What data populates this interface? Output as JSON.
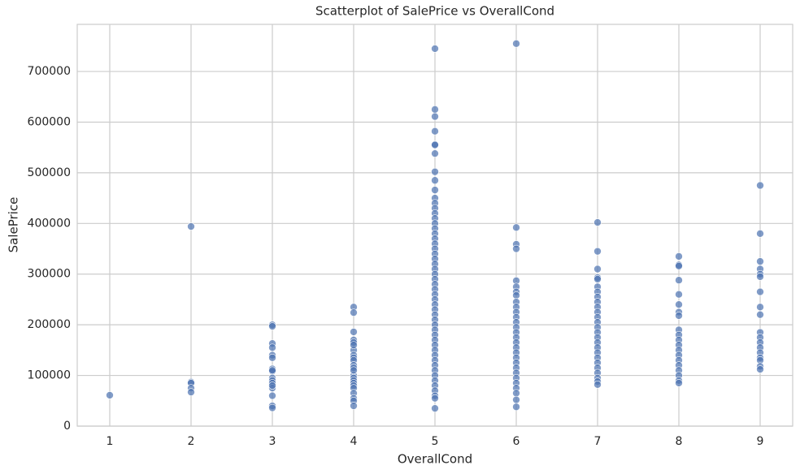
{
  "chart_data": {
    "type": "scatter",
    "title": "Scatterplot of SalePrice vs OverallCond",
    "x_label": "OverallCond",
    "y_label": "SalePrice",
    "xlim": [
      0.6,
      9.4
    ],
    "ylim": [
      0,
      793000
    ],
    "xticks": [
      1,
      2,
      3,
      4,
      5,
      6,
      7,
      8,
      9
    ],
    "yticks": [
      0,
      100000,
      200000,
      300000,
      400000,
      500000,
      600000,
      700000
    ],
    "grid": true,
    "color": "#4c72b0",
    "x": [
      1,
      2,
      2,
      2,
      2,
      2,
      3,
      3,
      3,
      3,
      3,
      3,
      3,
      3,
      3,
      3,
      3,
      3,
      3,
      3,
      3,
      3,
      3,
      4,
      4,
      4,
      4,
      4,
      4,
      4,
      4,
      4,
      4,
      4,
      4,
      4,
      4,
      4,
      4,
      4,
      4,
      4,
      4,
      4,
      4,
      4,
      5,
      5,
      5,
      5,
      5,
      5,
      5,
      5,
      5,
      5,
      5,
      5,
      5,
      5,
      5,
      5,
      5,
      5,
      5,
      5,
      5,
      5,
      5,
      5,
      5,
      5,
      5,
      5,
      5,
      5,
      5,
      5,
      5,
      5,
      5,
      5,
      5,
      5,
      5,
      5,
      5,
      5,
      5,
      5,
      5,
      5,
      5,
      5,
      5,
      5,
      5,
      5,
      6,
      6,
      6,
      6,
      6,
      6,
      6,
      6,
      6,
      6,
      6,
      6,
      6,
      6,
      6,
      6,
      6,
      6,
      6,
      6,
      6,
      6,
      6,
      6,
      6,
      6,
      6,
      6,
      6,
      7,
      7,
      7,
      7,
      7,
      7,
      7,
      7,
      7,
      7,
      7,
      7,
      7,
      7,
      7,
      7,
      7,
      7,
      7,
      7,
      7,
      7,
      7,
      7,
      7,
      7,
      8,
      8,
      8,
      8,
      8,
      8,
      8,
      8,
      8,
      8,
      8,
      8,
      8,
      8,
      8,
      8,
      8,
      8,
      8,
      8,
      9,
      9,
      9,
      9,
      9,
      9,
      9,
      9,
      9,
      9,
      9,
      9,
      9,
      9,
      9,
      9,
      9,
      9
    ],
    "y": [
      61000,
      394000,
      87000,
      85000,
      75000,
      67000,
      200000,
      197000,
      163000,
      155000,
      140000,
      135000,
      113000,
      108000,
      95000,
      90000,
      85000,
      75000,
      60000,
      40000,
      36000,
      110000,
      80000,
      235000,
      224000,
      186000,
      170000,
      165000,
      150000,
      140000,
      135000,
      130000,
      120000,
      115000,
      100000,
      95000,
      90000,
      85000,
      80000,
      75000,
      65000,
      55000,
      50000,
      40000,
      160000,
      110000,
      745000,
      625000,
      611000,
      582000,
      556000,
      555000,
      538000,
      502000,
      485000,
      466000,
      450000,
      440000,
      430000,
      420000,
      410000,
      400000,
      390000,
      380000,
      370000,
      360000,
      350000,
      340000,
      330000,
      320000,
      310000,
      300000,
      290000,
      280000,
      270000,
      260000,
      250000,
      240000,
      230000,
      220000,
      210000,
      200000,
      190000,
      180000,
      170000,
      160000,
      150000,
      140000,
      130000,
      120000,
      110000,
      100000,
      90000,
      80000,
      70000,
      60000,
      55000,
      35000,
      755000,
      392000,
      359000,
      350000,
      287000,
      275000,
      265000,
      258000,
      245000,
      235000,
      225000,
      215000,
      205000,
      195000,
      185000,
      175000,
      165000,
      155000,
      145000,
      135000,
      125000,
      115000,
      105000,
      95000,
      85000,
      75000,
      65000,
      52000,
      38000,
      402000,
      345000,
      310000,
      293000,
      290000,
      275000,
      265000,
      255000,
      245000,
      235000,
      225000,
      215000,
      205000,
      195000,
      185000,
      175000,
      165000,
      155000,
      145000,
      135000,
      125000,
      115000,
      105000,
      95000,
      88000,
      82000,
      335000,
      318000,
      316000,
      288000,
      260000,
      240000,
      225000,
      218000,
      190000,
      180000,
      170000,
      160000,
      150000,
      140000,
      130000,
      120000,
      110000,
      100000,
      90000,
      85000,
      475000,
      380000,
      325000,
      310000,
      300000,
      295000,
      265000,
      235000,
      220000,
      185000,
      175000,
      165000,
      155000,
      145000,
      135000,
      130000,
      118000,
      112000
    ]
  }
}
